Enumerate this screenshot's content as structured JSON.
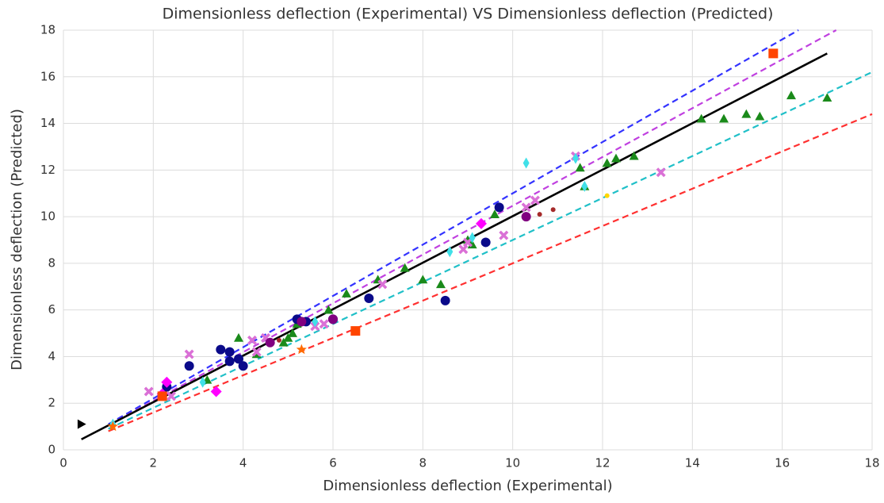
{
  "chart_data": {
    "type": "scatter",
    "title": "Dimensionless deflection (Experimental) VS Dimensionless deflection (Predicted)",
    "x_label": "Dimensionless deflection (Experimental)",
    "y_label": "Dimensionless deflection (Predicted)",
    "xlim": [
      0,
      18
    ],
    "ylim": [
      0,
      18
    ],
    "xticks": [
      0,
      2,
      4,
      6,
      8,
      10,
      12,
      14,
      16,
      18
    ],
    "yticks": [
      0,
      2,
      4,
      6,
      8,
      10,
      12,
      14,
      16,
      18
    ],
    "grid": true,
    "series": [
      {
        "mode": "line",
        "dash": true,
        "color": "#3333ff",
        "x": [
          1,
          16.36
        ],
        "values": [
          1.1,
          18
        ]
      },
      {
        "mode": "line",
        "dash": true,
        "color": "#c040e0",
        "x": [
          1,
          17.2
        ],
        "values": [
          1.05,
          18
        ]
      },
      {
        "mode": "line",
        "dash": true,
        "color": "#20c0c8",
        "x": [
          1,
          18
        ],
        "values": [
          0.9,
          16.2
        ]
      },
      {
        "mode": "line",
        "dash": true,
        "color": "#ff3030",
        "x": [
          1,
          18
        ],
        "values": [
          0.8,
          14.4
        ]
      },
      {
        "mode": "line",
        "dash": false,
        "color": "#000000",
        "x": [
          0.4,
          17
        ],
        "values": [
          0.45,
          17
        ]
      },
      {
        "mode": "marker",
        "marker": "^",
        "color": "#1a8a1a",
        "x": [
          3.9,
          4.9,
          5.0,
          5.1,
          5.2,
          5.9,
          6.3,
          7.0,
          7.6,
          8.0,
          8.4,
          9.1,
          9.6,
          11.5,
          11.6,
          12.1,
          12.3,
          12.7,
          14.2,
          14.7,
          15.2,
          15.5,
          16.2,
          17.0,
          3.2,
          4.3,
          9.0
        ],
        "values": [
          4.8,
          4.6,
          4.8,
          5.0,
          5.4,
          6.0,
          6.7,
          7.3,
          7.8,
          7.3,
          7.1,
          8.8,
          10.1,
          12.1,
          11.3,
          12.3,
          12.5,
          12.6,
          14.2,
          14.2,
          14.4,
          14.3,
          15.2,
          15.1,
          3.0,
          4.1,
          9.0
        ]
      },
      {
        "mode": "marker",
        "marker": "o",
        "color": "#0a0a8a",
        "x": [
          2.3,
          2.8,
          3.5,
          3.7,
          3.7,
          3.9,
          4.0,
          5.2,
          5.4,
          6.0,
          6.8,
          8.5,
          9.4,
          9.7
        ],
        "values": [
          2.7,
          3.6,
          4.3,
          4.2,
          3.8,
          3.9,
          3.6,
          5.6,
          5.5,
          5.6,
          6.5,
          6.4,
          8.9,
          10.4
        ]
      },
      {
        "mode": "marker",
        "marker": "X",
        "color": "#da70d6",
        "x": [
          1.9,
          2.8,
          2.4,
          4.2,
          4.3,
          4.5,
          5.6,
          5.8,
          7.1,
          8.9,
          9.0,
          9.8,
          10.3,
          10.5,
          13.3,
          11.4
        ],
        "values": [
          2.5,
          4.1,
          2.3,
          4.7,
          4.2,
          4.8,
          5.3,
          5.4,
          7.1,
          8.6,
          8.9,
          9.2,
          10.4,
          10.7,
          11.9,
          12.6
        ]
      },
      {
        "mode": "marker",
        "marker": "D",
        "color": "#ff00ff",
        "x": [
          2.3,
          2.2,
          3.4,
          9.3
        ],
        "values": [
          2.9,
          2.4,
          2.5,
          9.7
        ]
      },
      {
        "mode": "marker",
        "marker": "d",
        "color": "#40e0e8",
        "x": [
          10.3,
          11.4,
          11.6,
          8.6,
          9.1,
          5.6,
          1.1,
          3.1
        ],
        "values": [
          12.3,
          12.5,
          11.3,
          8.5,
          9.1,
          5.5,
          1.1,
          2.9
        ]
      },
      {
        "mode": "marker",
        "marker": "s",
        "color": "#ff4500",
        "x": [
          15.8,
          6.5,
          2.2
        ],
        "values": [
          17.0,
          5.1,
          2.3
        ]
      },
      {
        "mode": "marker",
        "marker": "o",
        "color": "#800080",
        "x": [
          10.3,
          5.3,
          6.0,
          4.6
        ],
        "values": [
          10.0,
          5.5,
          5.6,
          4.6
        ]
      },
      {
        "mode": "marker",
        "marker": ".",
        "color": "#a52a2a",
        "x": [
          10.6,
          10.9,
          4.8
        ],
        "values": [
          10.1,
          10.3,
          4.7
        ]
      },
      {
        "mode": "marker",
        "marker": ">",
        "color": "#000000",
        "x": [
          0.4
        ],
        "values": [
          1.1
        ]
      },
      {
        "mode": "marker",
        "marker": "*",
        "color": "#ff6a00",
        "x": [
          5.3,
          1.1
        ],
        "values": [
          4.3,
          1.0
        ]
      },
      {
        "mode": "marker",
        "marker": ".",
        "color": "#ffd700",
        "x": [
          12.1
        ],
        "values": [
          10.9
        ]
      }
    ]
  }
}
